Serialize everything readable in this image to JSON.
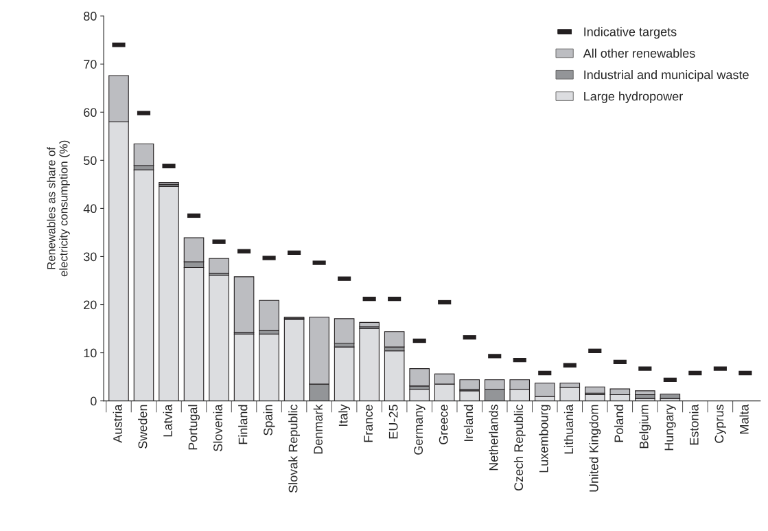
{
  "chart_data": {
    "type": "bar",
    "stacked": true,
    "ylabel": "Renewables as share of\nelectricity consumption (%)",
    "categories": [
      "Austria",
      "Sweden",
      "Latvia",
      "Portugal",
      "Slovenia",
      "Finland",
      "Spain",
      "Slovak Republic",
      "Denmark",
      "Italy",
      "France",
      "EU-25",
      "Germany",
      "Greece",
      "Ireland",
      "Netherlands",
      "Czech Republic",
      "Luxembourg",
      "Lithuania",
      "United Kingdom",
      "Poland",
      "Belgium",
      "Hungary",
      "Estonia",
      "Cyprus",
      "Malta"
    ],
    "series": [
      {
        "name": "Large hydropower",
        "color": "#dcdde0",
        "values": [
          58.0,
          48.0,
          44.6,
          27.7,
          26.1,
          13.9,
          13.9,
          16.9,
          0,
          11.2,
          15.0,
          10.4,
          2.4,
          3.5,
          2.1,
          0,
          2.4,
          0.9,
          2.8,
          1.3,
          1.3,
          0.5,
          0.5,
          0,
          0,
          0
        ]
      },
      {
        "name": "Industrial and municipal waste",
        "color": "#939598",
        "values": [
          0,
          0.9,
          0.4,
          1.2,
          0.4,
          0.3,
          0.7,
          0.3,
          3.5,
          0.8,
          0.4,
          0.8,
          0.7,
          0,
          0.3,
          2.4,
          0,
          0,
          0,
          0.3,
          0,
          0.8,
          0.9,
          0,
          0,
          0
        ]
      },
      {
        "name": "All other renewables",
        "color": "#bcbdc1",
        "values": [
          9.6,
          4.5,
          0.4,
          5.0,
          3.1,
          11.6,
          6.3,
          0.2,
          13.9,
          5.1,
          0.9,
          3.2,
          3.6,
          2.1,
          2.0,
          2.0,
          2.0,
          2.8,
          0.9,
          1.3,
          1.2,
          0.8,
          0,
          0,
          0,
          0
        ]
      },
      {
        "name": "Indicative targets",
        "type": "scatter",
        "color": "#231f20",
        "x": [
          "Austria",
          "Sweden",
          "Latvia",
          "Portugal",
          "Slovenia",
          "Finland",
          "Spain",
          "Slovak Republic",
          "Denmark",
          "Italy",
          "France",
          "EU-25",
          "Germany",
          "Greece",
          "Ireland",
          "Netherlands",
          "Czech Republic",
          "Luxembourg",
          "Lithuania",
          "United Kingdom",
          "Poland",
          "Belgium",
          "Hungary",
          "Estonia",
          "Cyprus",
          "Malta"
        ],
        "values": [
          74,
          59.8,
          48.8,
          38.5,
          33.1,
          31.1,
          29.7,
          30.8,
          28.7,
          25.4,
          21.2,
          21.2,
          12.5,
          20.5,
          13.2,
          9.3,
          8.5,
          5.8,
          7.4,
          10.4,
          8.1,
          6.7,
          4.4,
          5.8,
          6.7,
          5.8
        ]
      }
    ],
    "ylim": [
      0,
      80
    ],
    "yticks": [
      0,
      10,
      20,
      30,
      40,
      50,
      60,
      70,
      80
    ],
    "grid": false,
    "legend": "top right"
  }
}
